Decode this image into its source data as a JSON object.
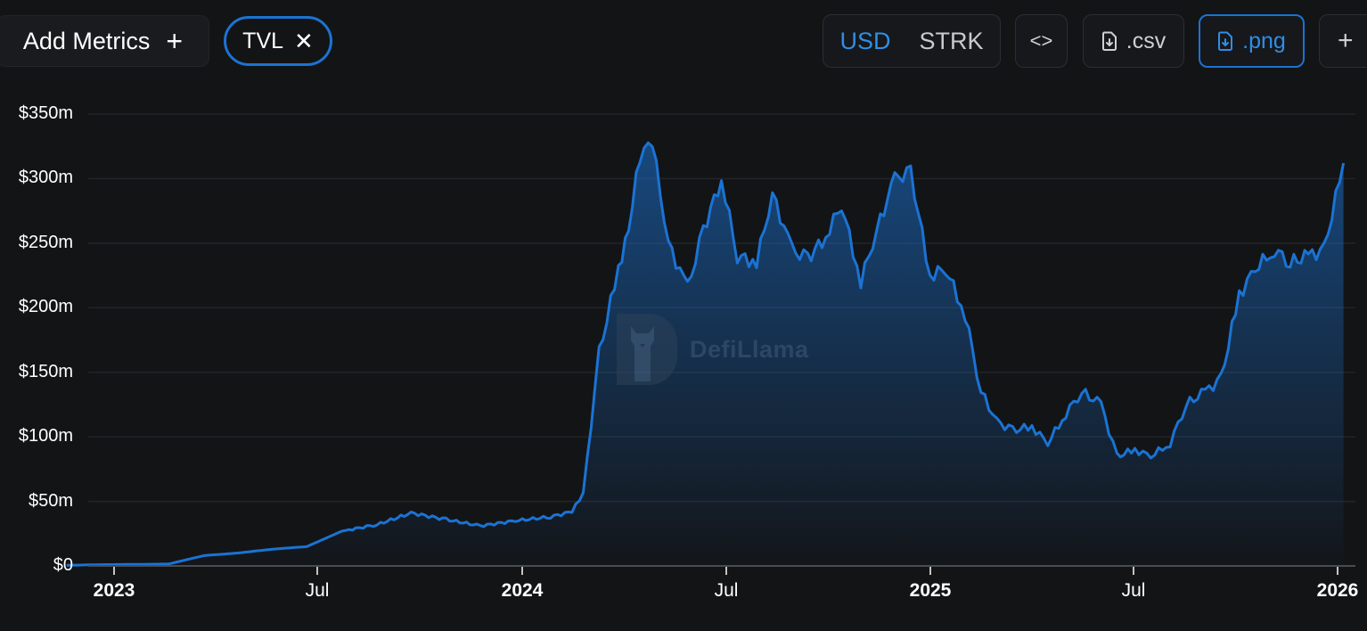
{
  "toolbar": {
    "add_metrics_label": "Add Metrics",
    "add_metrics_icon": "plus-icon",
    "active_metric": "TVL",
    "remove_metric_icon": "close-icon",
    "currency_options": [
      "USD",
      "STRK"
    ],
    "currency_selected": "USD",
    "embed_icon": "code-icon",
    "embed_label": "<>",
    "csv_label": ".csv",
    "png_label": ".png",
    "more_label": "+",
    "accent_color": "#1b73d3"
  },
  "watermark": {
    "text": "DefiLlama"
  },
  "chart_data": {
    "type": "area",
    "title": "",
    "xlabel": "",
    "ylabel": "",
    "series": [
      {
        "name": "TVL",
        "color": "#1b73d3"
      }
    ],
    "y_ticks": [
      "$0",
      "$50m",
      "$100m",
      "$150m",
      "$200m",
      "$250m",
      "$300m",
      "$350m"
    ],
    "ylim": [
      0,
      350
    ],
    "x_ticks": [
      {
        "label": "2023",
        "bold": true
      },
      {
        "label": "Jul",
        "bold": false
      },
      {
        "label": "2024",
        "bold": true
      },
      {
        "label": "Jul",
        "bold": false
      },
      {
        "label": "2025",
        "bold": true
      },
      {
        "label": "Jul",
        "bold": false
      },
      {
        "label": "2026",
        "bold": true
      }
    ],
    "grid": true,
    "legend": "none",
    "x": [
      "2022-12",
      "2023-01",
      "2023-02",
      "2023-03",
      "2023-04",
      "2023-05",
      "2023-06",
      "2023-07",
      "2023-08",
      "2023-09",
      "2023-10",
      "2023-11",
      "2023-12",
      "2024-01",
      "2024-02",
      "2024-02-20",
      "2024-03",
      "2024-03-15",
      "2024-04",
      "2024-04-10",
      "2024-04-20",
      "2024-05",
      "2024-05-15",
      "2024-06",
      "2024-06-15",
      "2024-07",
      "2024-07-15",
      "2024-08",
      "2024-08-15",
      "2024-09",
      "2024-09-15",
      "2024-10",
      "2024-10-15",
      "2024-11",
      "2024-11-15",
      "2024-12",
      "2024-12-15",
      "2025-01",
      "2025-01-15",
      "2025-02",
      "2025-02-15",
      "2025-03",
      "2025-03-15",
      "2025-04",
      "2025-04-15",
      "2025-05",
      "2025-05-15",
      "2025-06",
      "2025-06-15",
      "2025-07",
      "2025-07-15",
      "2025-08",
      "2025-08-15",
      "2025-09",
      "2025-09-15",
      "2025-10",
      "2025-10-15",
      "2025-11",
      "2025-11-15",
      "2025-12",
      "2025-12-15",
      "2026-01"
    ],
    "values": [
      0.5,
      1,
      1.2,
      1.5,
      8,
      10,
      13,
      15,
      27,
      32,
      41,
      36,
      31,
      35,
      38,
      42,
      56,
      165,
      230,
      262,
      318,
      328,
      250,
      215,
      260,
      300,
      240,
      235,
      288,
      245,
      238,
      255,
      280,
      220,
      260,
      300,
      305,
      225,
      230,
      195,
      135,
      112,
      105,
      108,
      95,
      118,
      135,
      125,
      85,
      90,
      85,
      95,
      125,
      135,
      145,
      210,
      230,
      245,
      235,
      240,
      245,
      312
    ],
    "units": "USD millions"
  }
}
